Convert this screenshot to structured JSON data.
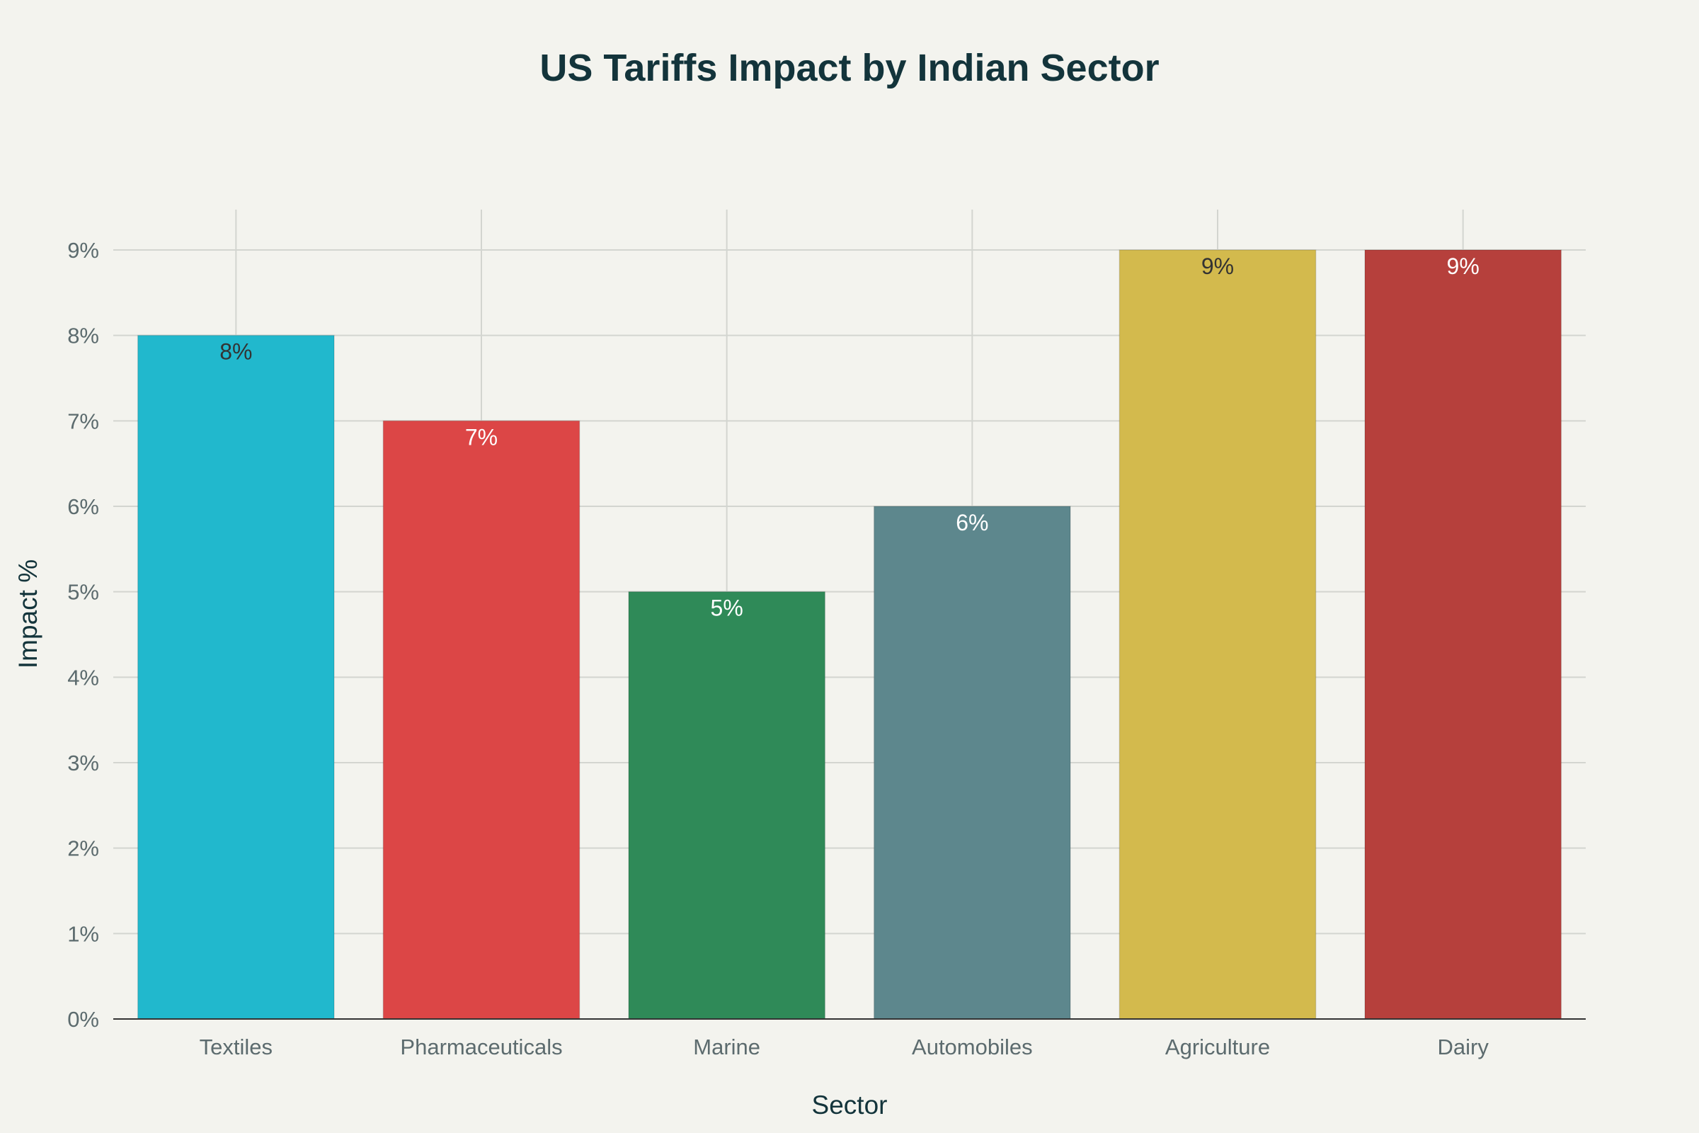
{
  "chart_data": {
    "type": "bar",
    "title": "US Tariffs Impact by Indian Sector",
    "xlabel": "Sector",
    "ylabel": "Impact %",
    "categories": [
      "Textiles",
      "Pharmaceuticals",
      "Marine",
      "Automobiles",
      "Agriculture",
      "Dairy"
    ],
    "values": [
      8,
      7,
      5,
      6,
      9,
      9
    ],
    "data_labels": [
      "8%",
      "7%",
      "5%",
      "6%",
      "9%",
      "9%"
    ],
    "colors": [
      "#21b8cd",
      "#dc4646",
      "#2f8a58",
      "#5d878d",
      "#d3ba4d",
      "#b6403c"
    ],
    "label_colors": [
      "#333333",
      "#ffffff",
      "#ffffff",
      "#ffffff",
      "#333333",
      "#ffffff"
    ],
    "ylim": [
      0,
      9.45
    ],
    "yticks": [
      0,
      1,
      2,
      3,
      4,
      5,
      6,
      7,
      8,
      9
    ],
    "ytick_labels": [
      "0%",
      "1%",
      "2%",
      "3%",
      "4%",
      "5%",
      "6%",
      "7%",
      "8%",
      "9%"
    ],
    "grid": true,
    "legend": "none"
  }
}
